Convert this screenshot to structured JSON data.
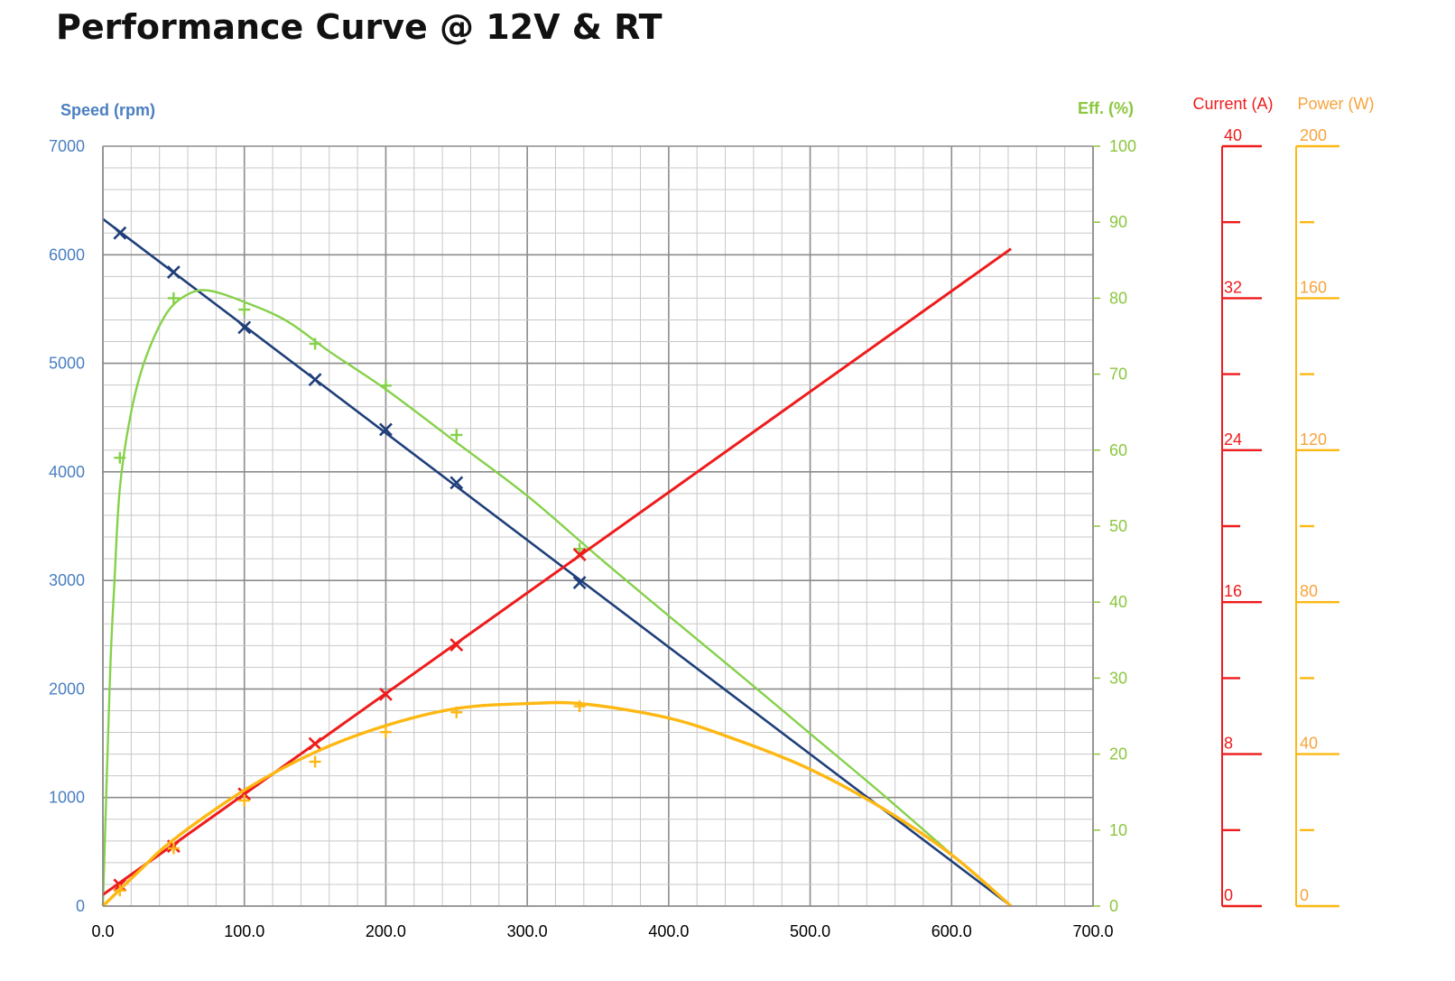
{
  "title": "Performance Curve @ 12V & RT",
  "colors": {
    "speed": "#1f3f7a",
    "efficiency": "#86d14a",
    "current": "#ee1c1c",
    "power": "#fdb813",
    "speed_axis": "#4a7fc1",
    "eff_axis": "#8cc63f",
    "current_axis": "#ee1c1c",
    "power_axis": "#f7a33c",
    "grid_major": "#8c8c8c",
    "grid_minor": "#c8c8c8"
  },
  "chart_data": {
    "type": "line",
    "title": "Performance Curve @ 12V & RT",
    "xlim": [
      0,
      700
    ],
    "x_ticks": [
      "0.0",
      "100.0",
      "200.0",
      "300.0",
      "400.0",
      "500.0",
      "600.0",
      "700.0"
    ],
    "grid": true,
    "axes": {
      "speed": {
        "label": "Speed (rpm)",
        "range": [
          0,
          7000
        ],
        "ticks": [
          "0",
          "1000",
          "2000",
          "3000",
          "4000",
          "5000",
          "6000",
          "7000"
        ]
      },
      "efficiency": {
        "label": "Eff. (%)",
        "range": [
          0,
          100
        ],
        "ticks": [
          "0",
          "10",
          "20",
          "30",
          "40",
          "50",
          "60",
          "70",
          "80",
          "90",
          "100"
        ]
      },
      "current": {
        "label": "Current (A)",
        "range": [
          0,
          40
        ],
        "ticks": [
          "0",
          "8",
          "16",
          "24",
          "32",
          "40"
        ]
      },
      "power": {
        "label": "Power (W)",
        "range": [
          0,
          200
        ],
        "ticks": [
          "0",
          "40",
          "80",
          "120",
          "160",
          "200"
        ]
      }
    },
    "series": [
      {
        "key": "speed",
        "axis": "speed",
        "line": [
          [
            0,
            6330
          ],
          [
            642,
            0
          ]
        ],
        "markers": [
          [
            12,
            6200
          ],
          [
            50,
            5840
          ],
          [
            100,
            5330
          ],
          [
            150,
            4850
          ],
          [
            200,
            4390
          ],
          [
            250,
            3900
          ],
          [
            337,
            2980
          ]
        ]
      },
      {
        "key": "efficiency",
        "axis": "efficiency",
        "line": [
          [
            0,
            0
          ],
          [
            5,
            30
          ],
          [
            8,
            42
          ],
          [
            12,
            55
          ],
          [
            20,
            65
          ],
          [
            30,
            72
          ],
          [
            45,
            78
          ],
          [
            60,
            80.5
          ],
          [
            75,
            81
          ],
          [
            100,
            79.5
          ],
          [
            130,
            77
          ],
          [
            160,
            73
          ],
          [
            200,
            68
          ],
          [
            250,
            61
          ],
          [
            300,
            54
          ],
          [
            350,
            46
          ],
          [
            400,
            38.2
          ],
          [
            450,
            30.5
          ],
          [
            500,
            22.7
          ],
          [
            550,
            14.9
          ],
          [
            600,
            6.8
          ],
          [
            642,
            0
          ]
        ],
        "markers": [
          [
            12,
            59
          ],
          [
            50,
            80
          ],
          [
            100,
            78.5
          ],
          [
            150,
            74
          ],
          [
            200,
            68.5
          ],
          [
            250,
            62
          ],
          [
            337,
            47
          ]
        ]
      },
      {
        "key": "current",
        "axis": "current",
        "line": [
          [
            0,
            0.6
          ],
          [
            642,
            34.6
          ]
        ],
        "markers": [
          [
            12,
            1.1
          ],
          [
            50,
            3.15
          ],
          [
            100,
            5.9
          ],
          [
            150,
            8.55
          ],
          [
            200,
            11.15
          ],
          [
            250,
            13.75
          ],
          [
            337,
            18.5
          ]
        ]
      },
      {
        "key": "power",
        "axis": "power",
        "line": [
          [
            0,
            0
          ],
          [
            25,
            9
          ],
          [
            50,
            17.5
          ],
          [
            100,
            30.5
          ],
          [
            150,
            40.5
          ],
          [
            200,
            47.5
          ],
          [
            250,
            52
          ],
          [
            300,
            53.3
          ],
          [
            340,
            53.2
          ],
          [
            400,
            49.5
          ],
          [
            450,
            43.5
          ],
          [
            500,
            36
          ],
          [
            550,
            26
          ],
          [
            600,
            13.5
          ],
          [
            642,
            0
          ]
        ],
        "markers": [
          [
            12,
            4.1
          ],
          [
            50,
            15.2
          ],
          [
            100,
            27.8
          ],
          [
            150,
            38
          ],
          [
            200,
            45.8
          ],
          [
            250,
            51
          ],
          [
            337,
            52.6
          ]
        ]
      }
    ]
  }
}
